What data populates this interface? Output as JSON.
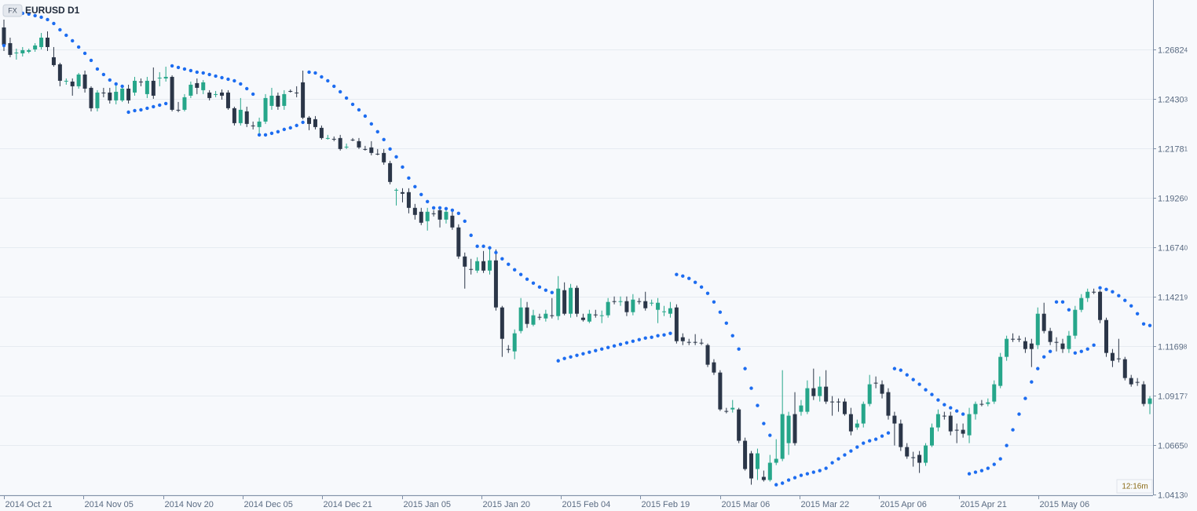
{
  "chart_data": {
    "type": "candlestick",
    "badge": "FX",
    "title": "EURUSD D1",
    "timer": "12:16m",
    "up_color": "#26a68a",
    "down_color": "#2b3648",
    "sar_color": "#1c6cf0",
    "grid": true,
    "ylim": [
      1.0409,
      1.2935
    ],
    "yticks": [
      {
        "value": 1.0413,
        "label": "1.04130"
      },
      {
        "value": 1.0665,
        "label": "1.06650"
      },
      1.09177,
      1.11698,
      1.14219,
      {
        "value": 1.1674,
        "label": "1.16740"
      },
      {
        "value": 1.1926,
        "label": "1.19260"
      },
      1.21781,
      1.24303,
      1.26824
    ],
    "xtick_labels": [
      "2014 Oct 21",
      "2014 Nov 05",
      "2014 Nov 20",
      "2014 Dec 05",
      "2014 Dec 21",
      "2015 Jan 05",
      "2015 Jan 20",
      "2015 Feb 04",
      "2015 Feb 19",
      "2015 Mar 06",
      "2015 Mar 22",
      "2015 Apr 06",
      "2015 Apr 21",
      "2015 May 06"
    ],
    "open": [
      1.2795,
      1.2715,
      1.2663,
      1.2663,
      1.2671,
      1.2683,
      1.2695,
      1.2743,
      1.2643,
      1.2607,
      1.2519,
      1.2519,
      1.2495,
      1.2555,
      1.2487,
      1.2383,
      1.2463,
      1.2463,
      1.2423,
      1.2423,
      1.2483,
      1.2463,
      1.2519,
      1.2455,
      1.2523,
      1.2535,
      1.2535,
      1.2543,
      1.2375,
      1.2375,
      1.2447,
      1.2511,
      1.2475,
      1.2463,
      1.2451,
      1.2463,
      1.2463,
      1.2383,
      1.2307,
      1.2367,
      1.2295,
      1.2287,
      1.2315,
      1.2395,
      1.2447,
      1.2395,
      1.2471,
      1.2463,
      1.2515,
      1.2335,
      1.2327,
      1.2283,
      1.2227,
      1.2227,
      1.2231,
      1.2183,
      1.2223,
      1.2215,
      1.2175,
      1.2183,
      1.2151,
      1.2155,
      1.2103,
      1.1963,
      1.1955,
      1.1955,
      1.1875,
      1.1855,
      1.1807,
      1.1847,
      1.1863,
      1.1815,
      1.1835,
      1.1775,
      1.1627,
      1.1563,
      1.1555,
      1.1603,
      1.1555,
      1.1607,
      1.1367,
      1.1155,
      1.1143,
      1.1247,
      1.1367,
      1.1279,
      1.1319,
      1.1311,
      1.1327,
      1.1323,
      1.1455,
      1.1335,
      1.1467,
      1.1315,
      1.1295,
      1.1331,
      1.1323,
      1.1327,
      1.1399,
      1.1395,
      1.1399,
      1.1343,
      1.1399,
      1.1399,
      1.1387,
      1.1355,
      1.1343,
      1.1335,
      1.1367,
      1.1215,
      1.1191,
      1.1191,
      1.1187,
      1.1175,
      1.1087,
      1.1035,
      1.0839,
      1.0847,
      1.0847,
      1.0687,
      1.0623,
      1.0543,
      1.0503,
      1.0487,
      1.0575,
      1.0595,
      1.0675,
      1.0823,
      1.0835,
      1.0835,
      1.0955,
      1.0915,
      1.0963,
      1.0887,
      1.0887,
      1.0887,
      1.0823,
      1.0755,
      1.0775,
      1.0875,
      1.0983,
      1.0975,
      1.0935,
      1.0815,
      1.0775,
      1.0655,
      1.0603,
      1.0615,
      1.0575,
      1.0663,
      1.0755,
      1.0815,
      1.0815,
      1.0743,
      1.0743,
      1.0715,
      1.0823,
      1.0875,
      1.0875,
      1.0887,
      1.0967,
      1.1115,
      1.1207,
      1.1207,
      1.1195,
      1.1183,
      1.1175,
      1.1335,
      1.1247,
      1.1191,
      1.1183,
      1.1155,
      1.1223,
      1.1355,
      1.1415,
      1.1447,
      1.1447,
      1.1303,
      1.1135,
      1.1107,
      1.1103,
      1.1007,
      1.0987,
      1.0975,
      1.0875
    ],
    "high": [
      1.2835,
      1.2743,
      1.2687,
      1.2695,
      1.2687,
      1.2715,
      1.2767,
      1.2775,
      1.2695,
      1.2615,
      1.2535,
      1.2535,
      1.2563,
      1.2575,
      1.2495,
      1.2475,
      1.2487,
      1.2487,
      1.2503,
      1.2495,
      1.2503,
      1.2543,
      1.2535,
      1.2543,
      1.2591,
      1.2567,
      1.2595,
      1.2551,
      1.2415,
      1.2455,
      1.2519,
      1.2535,
      1.2527,
      1.2475,
      1.2471,
      1.2479,
      1.2475,
      1.2391,
      1.2435,
      1.2391,
      1.2315,
      1.2335,
      1.2455,
      1.2487,
      1.2463,
      1.2475,
      1.2479,
      1.2495,
      1.2575,
      1.2343,
      1.2343,
      1.2295,
      1.2247,
      1.2239,
      1.2247,
      1.2203,
      1.2231,
      1.2231,
      1.2191,
      1.2215,
      1.2175,
      1.2175,
      1.2115,
      1.1975,
      1.1975,
      1.1975,
      1.1895,
      1.1875,
      1.1875,
      1.1863,
      1.1875,
      1.1875,
      1.1855,
      1.1791,
      1.1647,
      1.1615,
      1.1623,
      1.1655,
      1.1675,
      1.1663,
      1.1375,
      1.1175,
      1.1255,
      1.1415,
      1.1395,
      1.1355,
      1.1335,
      1.1355,
      1.1415,
      1.1527,
      1.1495,
      1.1487,
      1.1479,
      1.1335,
      1.1355,
      1.1355,
      1.1351,
      1.1415,
      1.1423,
      1.1423,
      1.1423,
      1.1435,
      1.1415,
      1.1447,
      1.1407,
      1.1415,
      1.1375,
      1.1395,
      1.1383,
      1.1235,
      1.1207,
      1.1231,
      1.1207,
      1.1183,
      1.1103,
      1.1047,
      1.0855,
      1.0895,
      1.0855,
      1.0703,
      1.0635,
      1.0647,
      1.0535,
      1.0615,
      1.0695,
      1.1047,
      1.0835,
      1.0935,
      1.0895,
      1.0995,
      1.1055,
      1.1015,
      1.1047,
      1.0915,
      1.0903,
      1.0903,
      1.0855,
      1.0795,
      1.0887,
      1.1023,
      1.1015,
      1.0995,
      1.0955,
      1.0835,
      1.0795,
      1.0675,
      1.0631,
      1.0635,
      1.0675,
      1.0775,
      1.0847,
      1.0835,
      1.0835,
      1.0775,
      1.0775,
      1.0855,
      1.0887,
      1.0895,
      1.0903,
      1.0995,
      1.1135,
      1.1223,
      1.1235,
      1.1223,
      1.1215,
      1.1207,
      1.1367,
      1.1391,
      1.1263,
      1.1215,
      1.1207,
      1.1247,
      1.1375,
      1.1435,
      1.1463,
      1.1463,
      1.1455,
      1.1315,
      1.1155,
      1.1207,
      1.1115,
      1.1023,
      1.1007,
      1.0991,
      1.0915
    ],
    "low": [
      1.2675,
      1.2643,
      1.2631,
      1.2647,
      1.2663,
      1.2671,
      1.2683,
      1.2675,
      1.2595,
      1.2495,
      1.2503,
      1.2447,
      1.2483,
      1.2463,
      1.2367,
      1.2367,
      1.2439,
      1.2407,
      1.2403,
      1.2415,
      1.2407,
      1.2447,
      1.2495,
      1.2435,
      1.2431,
      1.2495,
      1.2519,
      1.2367,
      1.2363,
      1.2367,
      1.2435,
      1.2455,
      1.2455,
      1.2423,
      1.2439,
      1.2427,
      1.2375,
      1.2295,
      1.2295,
      1.2287,
      1.2275,
      1.2255,
      1.2303,
      1.2375,
      1.2375,
      1.2375,
      1.2463,
      1.2439,
      1.2327,
      1.2271,
      1.2275,
      1.2223,
      1.2223,
      1.2215,
      1.2167,
      1.2175,
      1.2215,
      1.2175,
      1.2167,
      1.2143,
      1.2143,
      1.2095,
      1.1995,
      1.1887,
      1.1903,
      1.1847,
      1.1815,
      1.1787,
      1.1759,
      1.1831,
      1.1775,
      1.1795,
      1.1763,
      1.1615,
      1.1463,
      1.1535,
      1.1543,
      1.1543,
      1.1535,
      1.1351,
      1.1115,
      1.1135,
      1.1103,
      1.1235,
      1.1263,
      1.1271,
      1.1303,
      1.1295,
      1.1311,
      1.1303,
      1.1327,
      1.1315,
      1.1319,
      1.1295,
      1.1287,
      1.1315,
      1.1287,
      1.1315,
      1.1383,
      1.1375,
      1.1323,
      1.1327,
      1.1383,
      1.1351,
      1.1375,
      1.1287,
      1.1323,
      1.1315,
      1.1183,
      1.1175,
      1.1175,
      1.1175,
      1.1175,
      1.1063,
      1.1023,
      1.0839,
      1.0827,
      1.0831,
      1.0675,
      1.0535,
      1.0463,
      1.0487,
      1.0479,
      1.0479,
      1.0563,
      1.0583,
      1.0615,
      1.0663,
      1.0815,
      1.0823,
      1.0895,
      1.0887,
      1.0875,
      1.0815,
      1.0835,
      1.0815,
      1.0715,
      1.0743,
      1.0755,
      1.0863,
      1.0955,
      1.0903,
      1.0795,
      1.0663,
      1.0635,
      1.0595,
      1.0555,
      1.0523,
      1.0559,
      1.0655,
      1.0735,
      1.0795,
      1.0715,
      1.0675,
      1.0703,
      1.0675,
      1.0795,
      1.0863,
      1.0863,
      1.0875,
      1.0955,
      1.1095,
      1.1191,
      1.1191,
      1.1135,
      1.1063,
      1.1155,
      1.1235,
      1.1175,
      1.1143,
      1.1135,
      1.1135,
      1.1207,
      1.1343,
      1.1395,
      1.1435,
      1.1287,
      1.1115,
      1.1063,
      1.1087,
      1.0995,
      1.0963,
      1.0967,
      1.0863,
      1.0823
    ],
    "close": [
      1.2707,
      1.2655,
      1.2667,
      1.2679,
      1.2679,
      1.2703,
      1.2743,
      1.2695,
      1.2603,
      1.2523,
      1.2523,
      1.2495,
      1.2555,
      1.2483,
      1.2383,
      1.2463,
      1.2463,
      1.2423,
      1.2467,
      1.2483,
      1.2423,
      1.2523,
      1.2519,
      1.2523,
      1.2447,
      1.2539,
      1.2543,
      1.2375,
      1.2375,
      1.2439,
      1.2503,
      1.2487,
      1.2515,
      1.2435,
      1.2455,
      1.2447,
      1.2383,
      1.2307,
      1.2375,
      1.2303,
      1.2295,
      1.2315,
      1.2435,
      1.2447,
      1.2391,
      1.2455,
      1.2471,
      1.2463,
      1.2335,
      1.2303,
      1.2287,
      1.2231,
      1.2231,
      1.2227,
      1.2175,
      1.2187,
      1.2223,
      1.2183,
      1.2175,
      1.2155,
      1.2151,
      1.2107,
      1.2007,
      1.1967,
      1.1947,
      1.1875,
      1.1839,
      1.1799,
      1.1855,
      1.1847,
      1.1815,
      1.1855,
      1.1775,
      1.1627,
      1.1575,
      1.1563,
      1.1603,
      1.1555,
      1.1607,
      1.1367,
      1.1207,
      1.1155,
      1.1235,
      1.1367,
      1.1283,
      1.1327,
      1.1319,
      1.1335,
      1.1327,
      1.1463,
      1.1335,
      1.1467,
      1.1335,
      1.1303,
      1.1335,
      1.1331,
      1.1327,
      1.1395,
      1.1399,
      1.1399,
      1.1343,
      1.1407,
      1.1399,
      1.1363,
      1.1391,
      1.1391,
      1.1347,
      1.1363,
      1.1195,
      1.1195,
      1.1187,
      1.1191,
      1.1183,
      1.1075,
      1.1035,
      1.0847,
      1.0839,
      1.0855,
      1.0687,
      1.0543,
      1.0495,
      1.0623,
      1.0487,
      1.0575,
      1.0595,
      1.0823,
      1.0815,
      1.0675,
      1.0867,
      1.0955,
      1.0915,
      1.0963,
      1.0887,
      1.0883,
      1.0887,
      1.0823,
      1.0735,
      1.0775,
      1.0875,
      1.0975,
      1.0983,
      1.0927,
      1.0815,
      1.0775,
      1.0655,
      1.0607,
      1.0603,
      1.0575,
      1.0663,
      1.0755,
      1.0823,
      1.0815,
      1.0735,
      1.0743,
      1.0723,
      1.0823,
      1.0875,
      1.0875,
      1.0883,
      1.0975,
      1.1115,
      1.1207,
      1.1207,
      1.1207,
      1.1155,
      1.1155,
      1.1335,
      1.1247,
      1.1191,
      1.1191,
      1.1155,
      1.1223,
      1.1355,
      1.1415,
      1.1447,
      1.1447,
      1.1303,
      1.1135,
      1.1095,
      1.1107,
      1.1007,
      1.0975,
      1.0983,
      1.0875,
      1.0903
    ],
    "sar": [
      1.2703,
      1.2879,
      1.2871,
      1.2867,
      1.2863,
      1.2855,
      1.2847,
      1.2835,
      1.2815,
      1.2783,
      1.2755,
      1.2727,
      1.2695,
      1.2663,
      1.2627,
      1.2583,
      1.2555,
      1.2527,
      1.2507,
      1.2495,
      1.2363,
      1.2371,
      1.2375,
      1.2383,
      1.2391,
      1.2399,
      1.2407,
      1.2599,
      1.2591,
      1.2583,
      1.2575,
      1.2567,
      1.2563,
      1.2555,
      1.2547,
      1.2539,
      1.2531,
      1.2523,
      1.2507,
      1.2483,
      1.2455,
      1.2247,
      1.2247,
      1.2255,
      1.2263,
      1.2275,
      1.2283,
      1.2295,
      1.2311,
      1.2567,
      1.2563,
      1.2543,
      1.2523,
      1.2495,
      1.2467,
      1.2435,
      1.2403,
      1.2375,
      1.2343,
      1.2303,
      1.2263,
      1.2223,
      1.2175,
      1.2135,
      1.2083,
      1.2027,
      1.1983,
      1.1943,
      1.1907,
      1.1875,
      1.1875,
      1.1871,
      1.1863,
      1.1847,
      1.1807,
      1.1735,
      1.1679,
      1.1679,
      1.1671,
      1.1647,
      1.1615,
      1.1587,
      1.1559,
      1.1535,
      1.1511,
      1.1491,
      1.1471,
      1.1455,
      1.1443,
      1.1095,
      1.1107,
      1.1115,
      1.1123,
      1.1131,
      1.1139,
      1.1147,
      1.1155,
      1.1163,
      1.1171,
      1.1179,
      1.1187,
      1.1195,
      1.1203,
      1.1211,
      1.1215,
      1.1223,
      1.1227,
      1.1235,
      1.1535,
      1.1527,
      1.1515,
      1.1495,
      1.1471,
      1.1439,
      1.1395,
      1.1343,
      1.1287,
      1.1223,
      1.1155,
      1.1055,
      1.0955,
      1.0867,
      1.0775,
      1.0715,
      1.0463,
      1.0471,
      1.0487,
      1.0499,
      1.0511,
      1.0519,
      1.0527,
      1.0535,
      1.0547,
      1.0575,
      1.0595,
      1.0615,
      1.0635,
      1.0655,
      1.0675,
      1.0687,
      1.0695,
      1.0711,
      1.0727,
      1.1055,
      1.1047,
      1.1023,
      1.0999,
      1.0975,
      1.0947,
      1.0923,
      1.0895,
      1.0871,
      1.0855,
      1.0839,
      1.0823,
      1.0519,
      1.0527,
      1.0535,
      1.0547,
      1.0567,
      1.0595,
      1.0663,
      1.0743,
      1.0823,
      1.0903,
      1.0987,
      1.1055,
      1.1115,
      1.1143,
      1.1395,
      1.1395,
      1.1355,
      1.1135,
      1.1143,
      1.1155,
      1.1175,
      1.1467,
      1.1459,
      1.1447,
      1.1427,
      1.1403,
      1.1375,
      1.1335,
      1.1283,
      1.1275
    ]
  }
}
